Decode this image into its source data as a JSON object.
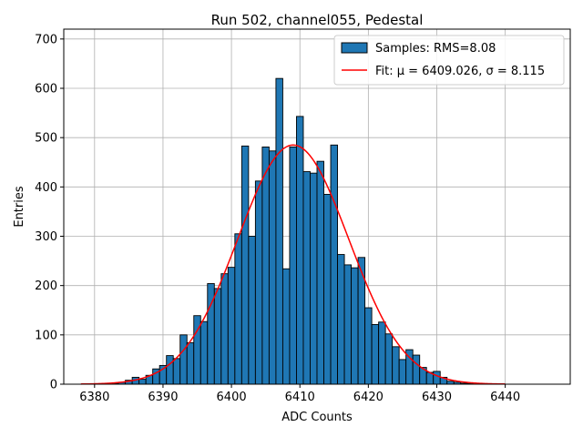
{
  "chart_data": {
    "type": "bar",
    "title": "Run 502, channel055, Pedestal",
    "xlabel": "ADC Counts",
    "ylabel": "Entries",
    "xlim": [
      6375.5,
      6449.5
    ],
    "ylim": [
      0,
      720
    ],
    "xticks": [
      6380,
      6390,
      6400,
      6410,
      6420,
      6430,
      6440
    ],
    "yticks": [
      0,
      100,
      200,
      300,
      400,
      500,
      600,
      700
    ],
    "grid": true,
    "legend_position": "top-right",
    "series": [
      {
        "name": "Samples: RMS=8.08",
        "kind": "histogram",
        "color": "#1f77b4",
        "edge_color": "#000000",
        "bin_width": 1,
        "x": [
          6378,
          6379,
          6380,
          6381,
          6382,
          6383,
          6384,
          6385,
          6386,
          6387,
          6388,
          6389,
          6390,
          6391,
          6392,
          6393,
          6394,
          6395,
          6396,
          6397,
          6398,
          6399,
          6400,
          6401,
          6402,
          6403,
          6404,
          6405,
          6406,
          6407,
          6408,
          6409,
          6410,
          6411,
          6412,
          6413,
          6414,
          6415,
          6416,
          6417,
          6418,
          6419,
          6420,
          6421,
          6422,
          6423,
          6424,
          6425,
          6426,
          6427,
          6428,
          6429,
          6430,
          6431,
          6432,
          6433,
          6434,
          6435,
          6436,
          6437,
          6438,
          6439
        ],
        "values": [
          0,
          0,
          0,
          0,
          1,
          2,
          4,
          8,
          14,
          10,
          18,
          31,
          38,
          58,
          52,
          100,
          84,
          139,
          127,
          204,
          194,
          224,
          237,
          305,
          483,
          300,
          412,
          481,
          473,
          620,
          234,
          481,
          543,
          431,
          428,
          452,
          385,
          485,
          263,
          242,
          236,
          257,
          155,
          121,
          126,
          102,
          76,
          50,
          70,
          59,
          34,
          24,
          26,
          14,
          6,
          4,
          2,
          1,
          1,
          0,
          0,
          0
        ]
      },
      {
        "name": "Fit: μ = 6409.026, σ = 8.115",
        "kind": "gaussian",
        "color": "#ff0000",
        "mu": 6409.026,
        "sigma": 8.115,
        "amplitude": 485,
        "x_range": [
          6378,
          6440
        ]
      }
    ]
  }
}
